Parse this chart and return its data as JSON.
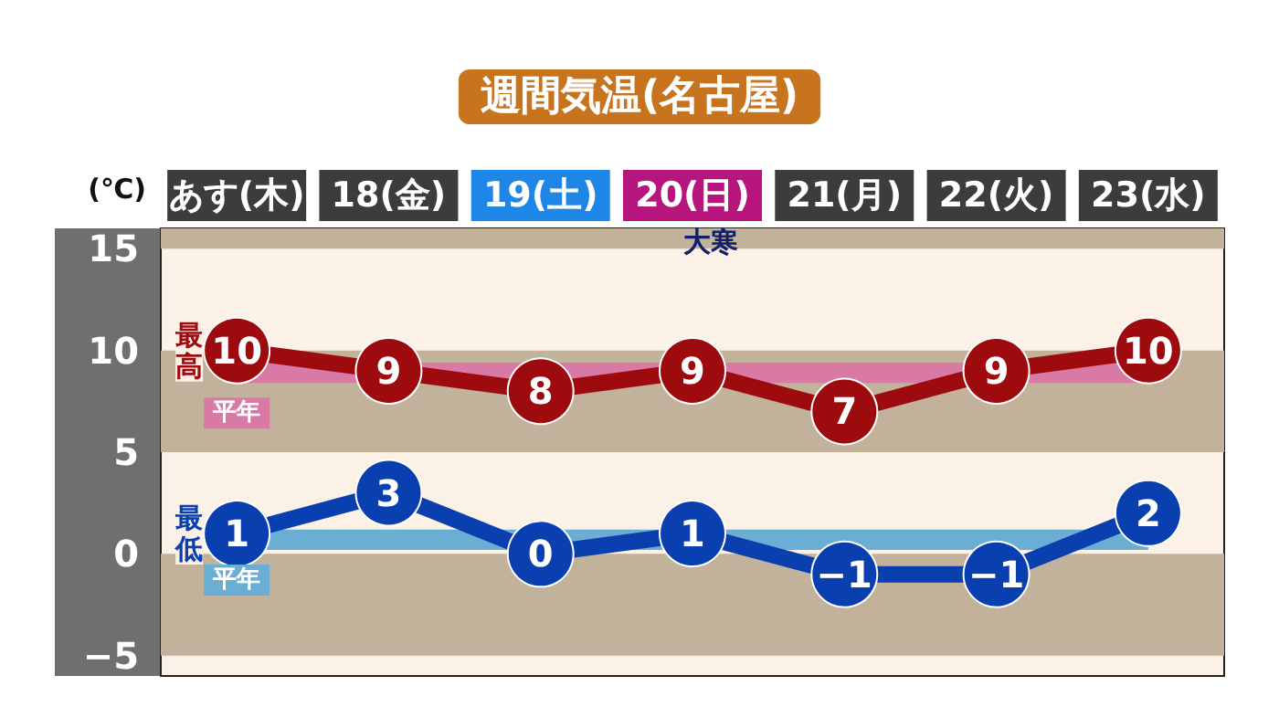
{
  "chart_data": {
    "type": "line",
    "title": "週間気温(名古屋)",
    "ylabel": "(℃)",
    "categories": [
      "あす(木)",
      "18(金)",
      "19(土)",
      "20(日)",
      "21(月)",
      "22(火)",
      "23(水)"
    ],
    "series": [
      {
        "name": "最高",
        "color": "#9e0b0f",
        "values": [
          10,
          9,
          8,
          9,
          7,
          9,
          10
        ]
      },
      {
        "name": "最低",
        "color": "#0a3fb0",
        "values": [
          1,
          3,
          0,
          1,
          -1,
          -1,
          2
        ]
      }
    ],
    "ylim": [
      -6,
      16
    ],
    "yticks": [
      -5,
      0,
      5,
      10,
      15
    ],
    "bands": [
      {
        "axis": "y",
        "from": 15,
        "to": 16,
        "color": "#c2b29c"
      },
      {
        "axis": "y",
        "from": 5,
        "to": 10,
        "color": "#c2b29c"
      },
      {
        "axis": "y",
        "from": -5,
        "to": 0,
        "color": "#c2b29c"
      },
      {
        "axis": "y",
        "from": 8.4,
        "to": 9.4,
        "label": "平年",
        "color": "#d97aa6"
      },
      {
        "axis": "y",
        "from": 0.2,
        "to": 1.2,
        "label": "平年",
        "color": "#6aaed3"
      }
    ],
    "annotations": [
      "大寒"
    ],
    "data_labels": true,
    "marker": "circle",
    "line_style": "solid",
    "grid": false,
    "legend": false
  }
}
